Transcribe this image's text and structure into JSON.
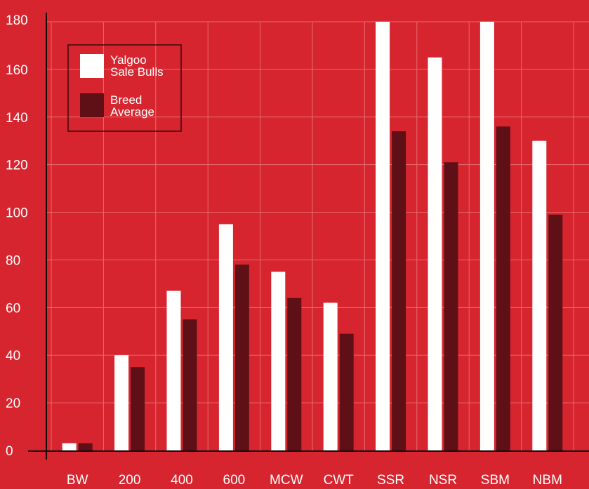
{
  "colors": {
    "background": "#D6252E",
    "series_1": "#FFFFFF",
    "series_2": "#5E1016",
    "grid": "#E86A70",
    "axis": "#1a0a0a",
    "legend_border": "#3a0a0e"
  },
  "chart_data": {
    "type": "bar",
    "categories": [
      "BW",
      "200",
      "400",
      "600",
      "MCW",
      "CWT",
      "SSR",
      "NSR",
      "SBM",
      "NBM"
    ],
    "series": [
      {
        "name": "Yalgoo Sale Bulls",
        "values": [
          3,
          40,
          67,
          95,
          75,
          62,
          180,
          165,
          180,
          130
        ]
      },
      {
        "name": "Breed Average",
        "values": [
          3,
          35,
          55,
          78,
          64,
          49,
          134,
          121,
          136,
          99
        ]
      }
    ],
    "title": "",
    "xlabel": "",
    "ylabel": "",
    "ylim": [
      0,
      180
    ],
    "yticks": [
      "0",
      "20",
      "40",
      "60",
      "80",
      "100",
      "120",
      "140",
      "160",
      "180"
    ],
    "grid": true,
    "legend_position": "top-left",
    "legend": [
      {
        "line1": "Yalgoo",
        "line2": "Sale Bulls"
      },
      {
        "line1": "Breed",
        "line2": "Average"
      }
    ]
  }
}
